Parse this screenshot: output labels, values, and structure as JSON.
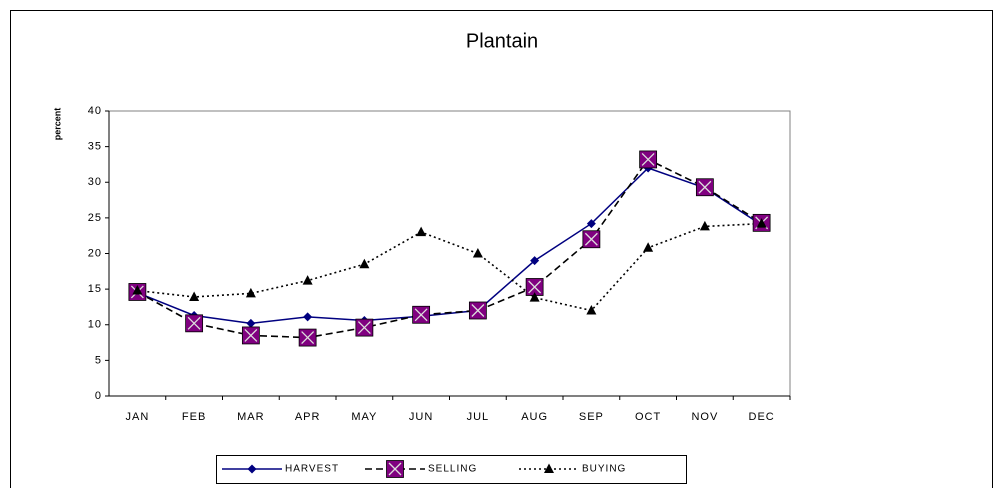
{
  "chart_data": {
    "type": "line",
    "title": "Plantain",
    "y_label": "percent",
    "categories": [
      "JAN",
      "FEB",
      "MAR",
      "APR",
      "MAY",
      "JUN",
      "JUL",
      "AUG",
      "SEP",
      "OCT",
      "NOV",
      "DEC"
    ],
    "series": [
      {
        "name": "HARVEST",
        "color": "#000080",
        "marker": "diamond",
        "dash": "solid",
        "values": [
          14.5,
          11.3,
          10.2,
          11.1,
          10.6,
          11.2,
          12,
          19,
          24.2,
          32,
          29.2,
          24
        ]
      },
      {
        "name": "SELLING",
        "color": "#800080",
        "marker": "square-x",
        "dash": "dashed",
        "values": [
          14.6,
          10.2,
          8.5,
          8.2,
          9.6,
          11.4,
          12,
          15.3,
          22,
          33.2,
          29.3,
          24.3
        ]
      },
      {
        "name": "BUYING",
        "color": "#000000",
        "marker": "triangle",
        "dash": "dotted",
        "values": [
          14.8,
          13.9,
          14.4,
          16.2,
          18.5,
          23,
          20,
          13.8,
          12,
          20.8,
          23.8,
          24.2
        ]
      }
    ],
    "ylim": [
      0,
      40
    ],
    "yticks": [
      0,
      5,
      10,
      15,
      20,
      25,
      30,
      35,
      40
    ],
    "grid": false,
    "legend": "bottom"
  }
}
